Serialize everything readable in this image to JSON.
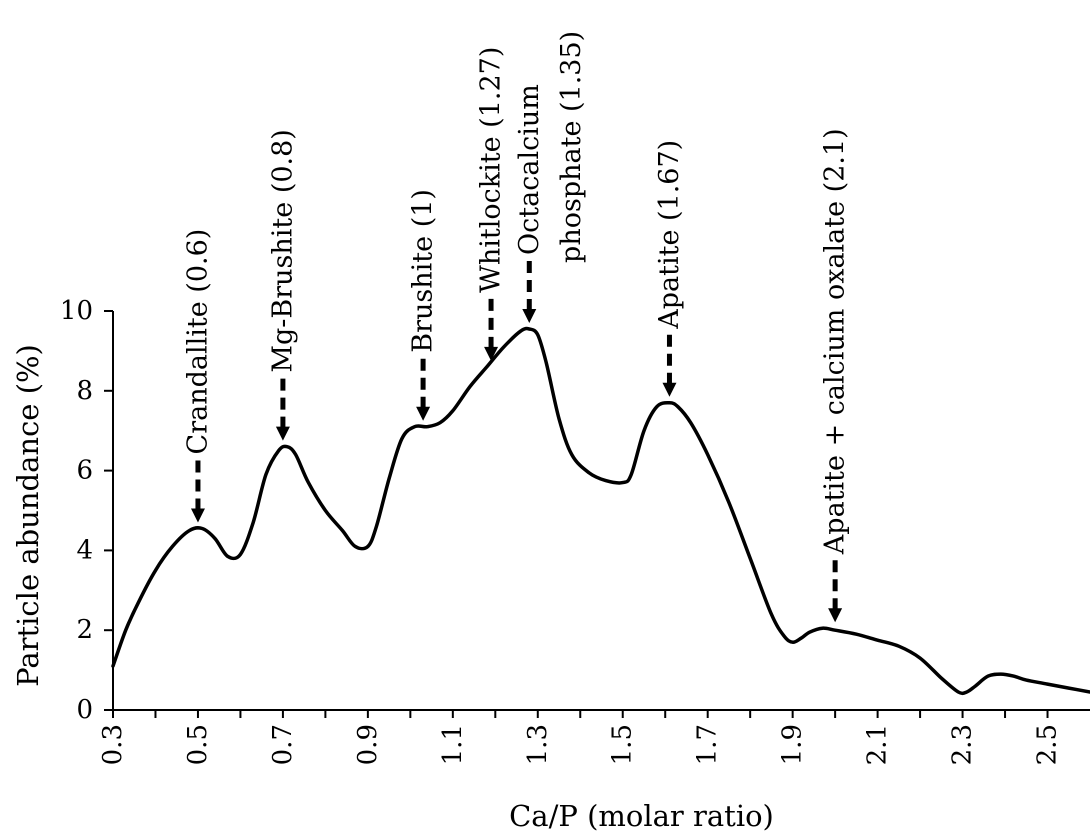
{
  "chart_data": {
    "type": "line",
    "title": "",
    "xlabel": "Ca/P (molar ratio)",
    "ylabel": "Particle abundance (%)",
    "xlim": [
      0.3,
      2.6
    ],
    "ylim": [
      0,
      10
    ],
    "x_ticks": [
      "0.3",
      "0.5",
      "0.7",
      "0.9",
      "1.1",
      "1.3",
      "1.5",
      "1.7",
      "1.9",
      "2.1",
      "2.3",
      "2.5"
    ],
    "y_ticks": [
      "0",
      "2",
      "4",
      "6",
      "8",
      "10"
    ],
    "grid": false,
    "legend": "none",
    "series": [
      {
        "x": [
          0.3,
          0.33,
          0.36,
          0.4,
          0.44,
          0.48,
          0.51,
          0.54,
          0.57,
          0.6,
          0.63,
          0.66,
          0.69,
          0.71,
          0.73,
          0.76,
          0.8,
          0.84,
          0.87,
          0.9,
          0.92,
          0.95,
          0.98,
          1.01,
          1.04,
          1.07,
          1.1,
          1.14,
          1.18,
          1.22,
          1.26,
          1.28,
          1.3,
          1.32,
          1.35,
          1.38,
          1.42,
          1.46,
          1.5,
          1.52,
          1.55,
          1.58,
          1.61,
          1.63,
          1.66,
          1.7,
          1.75,
          1.8,
          1.85,
          1.88,
          1.9,
          1.92,
          1.94,
          1.97,
          2.0,
          2.05,
          2.1,
          2.15,
          2.2,
          2.25,
          2.29,
          2.31,
          2.33,
          2.36,
          2.39,
          2.42,
          2.45,
          2.5,
          2.55,
          2.6
        ],
        "y": [
          1.1,
          2.0,
          2.7,
          3.5,
          4.1,
          4.5,
          4.55,
          4.3,
          3.85,
          3.9,
          4.7,
          5.9,
          6.5,
          6.6,
          6.4,
          5.7,
          5.0,
          4.5,
          4.1,
          4.1,
          4.6,
          5.8,
          6.8,
          7.1,
          7.1,
          7.2,
          7.5,
          8.1,
          8.6,
          9.1,
          9.5,
          9.55,
          9.4,
          8.7,
          7.3,
          6.4,
          5.95,
          5.75,
          5.7,
          5.9,
          7.0,
          7.6,
          7.7,
          7.6,
          7.2,
          6.4,
          5.2,
          3.8,
          2.4,
          1.85,
          1.7,
          1.8,
          1.95,
          2.05,
          2.0,
          1.9,
          1.75,
          1.6,
          1.3,
          0.8,
          0.45,
          0.45,
          0.6,
          0.85,
          0.9,
          0.85,
          0.75,
          0.65,
          0.55,
          0.45
        ]
      }
    ],
    "annotations": [
      {
        "label": "Crandallite (0.6)",
        "x": 0.5,
        "y": 4.55
      },
      {
        "label": "Mg-Brushite (0.8)",
        "x": 0.7,
        "y": 6.6
      },
      {
        "label": "Brushite (1)",
        "x": 1.03,
        "y": 7.1
      },
      {
        "label": "Whitlockite (1.27)",
        "x": 1.19,
        "y": 8.6
      },
      {
        "label": "Octacalcium",
        "label2": "phosphate (1.35)",
        "x": 1.28,
        "y": 9.55
      },
      {
        "label": "Apatite (1.67)",
        "x": 1.61,
        "y": 7.7
      },
      {
        "label": "Apatite + calcium oxalate  (2.1)",
        "x": 2.0,
        "y": 2.05
      }
    ]
  }
}
